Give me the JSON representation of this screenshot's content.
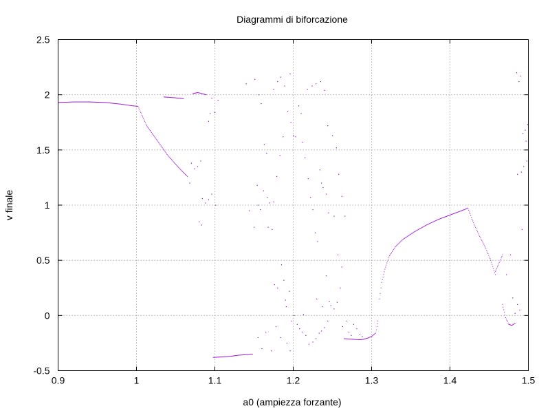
{
  "chart_data": {
    "type": "scatter",
    "title": "Diagrammi di biforcazione",
    "xlabel": "a0 (ampiezza forzante)",
    "ylabel": "v finale",
    "xlim": [
      0.9,
      1.5
    ],
    "ylim": [
      -0.5,
      2.5
    ],
    "x_ticks": [
      "0.9",
      "1",
      "1.1",
      "1.2",
      "1.3",
      "1.4",
      "1.5"
    ],
    "y_ticks": [
      "-0.5",
      "0",
      "0.5",
      "1",
      "1.5",
      "2",
      "2.5"
    ],
    "x_tick_values": [
      0.9,
      1.0,
      1.1,
      1.2,
      1.3,
      1.4,
      1.5
    ],
    "y_tick_values": [
      -0.5,
      0,
      0.5,
      1.0,
      1.5,
      2.0,
      2.5
    ],
    "grid": true,
    "series": [
      {
        "color": "#9400d3",
        "segments": [
          [
            [
              0.9,
              1.93
            ],
            [
              0.92,
              1.935
            ],
            [
              0.94,
              1.935
            ],
            [
              0.96,
              1.93
            ],
            [
              0.98,
              1.915
            ],
            [
              0.995,
              1.9
            ],
            [
              1.002,
              1.895
            ]
          ],
          [
            [
              1.003,
              1.88
            ],
            [
              1.008,
              1.8
            ],
            [
              1.013,
              1.72
            ],
            [
              1.02,
              1.65
            ],
            [
              1.027,
              1.58
            ],
            [
              1.033,
              1.52
            ],
            [
              1.04,
              1.45
            ],
            [
              1.05,
              1.37
            ],
            [
              1.058,
              1.31
            ],
            [
              1.065,
              1.26
            ]
          ],
          [
            [
              1.035,
              1.98
            ],
            [
              1.045,
              1.975
            ],
            [
              1.053,
              1.97
            ],
            [
              1.06,
              1.965
            ]
          ],
          [
            [
              1.072,
              2.01
            ],
            [
              1.078,
              2.02
            ],
            [
              1.084,
              2.01
            ],
            [
              1.089,
              2.0
            ]
          ],
          [
            [
              1.098,
              -0.38
            ],
            [
              1.11,
              -0.375
            ],
            [
              1.12,
              -0.37
            ],
            [
              1.13,
              -0.36
            ],
            [
              1.14,
              -0.355
            ],
            [
              1.148,
              -0.35
            ]
          ],
          [
            [
              1.265,
              -0.21
            ],
            [
              1.275,
              -0.215
            ],
            [
              1.285,
              -0.22
            ],
            [
              1.29,
              -0.215
            ],
            [
              1.295,
              -0.205
            ],
            [
              1.3,
              -0.19
            ],
            [
              1.305,
              -0.16
            ],
            [
              1.307,
              -0.1
            ],
            [
              1.308,
              -0.05
            ]
          ],
          [
            [
              1.31,
              0.15
            ],
            [
              1.313,
              0.3
            ],
            [
              1.317,
              0.42
            ],
            [
              1.322,
              0.53
            ],
            [
              1.33,
              0.62
            ],
            [
              1.34,
              0.69
            ],
            [
              1.355,
              0.76
            ],
            [
              1.37,
              0.82
            ],
            [
              1.385,
              0.87
            ],
            [
              1.4,
              0.91
            ],
            [
              1.415,
              0.95
            ],
            [
              1.422,
              0.97
            ]
          ],
          [
            [
              1.423,
              0.97
            ],
            [
              1.43,
              0.84
            ],
            [
              1.437,
              0.73
            ],
            [
              1.445,
              0.62
            ],
            [
              1.452,
              0.5
            ],
            [
              1.458,
              0.37
            ]
          ],
          [
            [
              1.458,
              0.4
            ],
            [
              1.463,
              0.48
            ],
            [
              1.467,
              0.55
            ]
          ],
          [
            [
              1.467,
              0.1
            ],
            [
              1.471,
              -0.02
            ],
            [
              1.475,
              -0.08
            ],
            [
              1.479,
              -0.09
            ],
            [
              1.483,
              -0.07
            ]
          ]
        ],
        "scatter": [
          [
            1.07,
            1.38
          ],
          [
            1.074,
            1.33
          ],
          [
            1.068,
            1.2
          ],
          [
            1.078,
            1.35
          ],
          [
            1.082,
            1.4
          ],
          [
            1.084,
            1.06
          ],
          [
            1.088,
            1.02
          ],
          [
            1.092,
            1.05
          ],
          [
            1.08,
            0.85
          ],
          [
            1.083,
            0.82
          ],
          [
            1.094,
            1.83
          ],
          [
            1.096,
            1.97
          ],
          [
            1.1,
            1.84
          ],
          [
            1.092,
            1.76
          ],
          [
            1.096,
            1.1
          ],
          [
            1.101,
            1.0
          ],
          [
            1.104,
            1.95
          ],
          [
            1.14,
            2.1
          ],
          [
            1.151,
            2.14
          ],
          [
            1.156,
            2.0
          ],
          [
            1.159,
            1.92
          ],
          [
            1.163,
            1.55
          ],
          [
            1.166,
            1.47
          ],
          [
            1.154,
            1.18
          ],
          [
            1.162,
            1.13
          ],
          [
            1.167,
            1.07
          ],
          [
            1.144,
            0.95
          ],
          [
            1.15,
            0.8
          ],
          [
            1.155,
            1.0
          ],
          [
            1.158,
            0.96
          ],
          [
            1.17,
            1.02
          ],
          [
            1.175,
            1.03
          ],
          [
            1.179,
            1.26
          ],
          [
            1.183,
            1.45
          ],
          [
            1.187,
            1.62
          ],
          [
            1.175,
            2.05
          ],
          [
            1.18,
            2.12
          ],
          [
            1.184,
            2.16
          ],
          [
            1.189,
            2.08
          ],
          [
            1.193,
            1.85
          ],
          [
            1.196,
            2.19
          ],
          [
            1.197,
            1.75
          ],
          [
            1.2,
            1.63
          ],
          [
            1.203,
            1.62
          ],
          [
            1.207,
            1.9
          ],
          [
            1.21,
            1.83
          ],
          [
            1.212,
            1.57
          ],
          [
            1.215,
            1.43
          ],
          [
            1.219,
            1.24
          ],
          [
            1.222,
            1.07
          ],
          [
            1.225,
            0.96
          ],
          [
            1.228,
            0.75
          ],
          [
            1.231,
            0.67
          ],
          [
            1.234,
            1.32
          ],
          [
            1.236,
            1.2
          ],
          [
            1.238,
            1.16
          ],
          [
            1.242,
            1.1
          ],
          [
            1.245,
            0.93
          ],
          [
            1.252,
            0.9
          ],
          [
            1.257,
            0.55
          ],
          [
            1.218,
            2.05
          ],
          [
            1.224,
            2.08
          ],
          [
            1.229,
            2.1
          ],
          [
            1.235,
            2.12
          ],
          [
            1.24,
            2.04
          ],
          [
            1.244,
            1.72
          ],
          [
            1.25,
            1.63
          ],
          [
            1.255,
            1.52
          ],
          [
            1.258,
            1.28
          ],
          [
            1.262,
            1.08
          ],
          [
            1.266,
            0.9
          ],
          [
            1.168,
            0.8
          ],
          [
            1.173,
            0.78
          ],
          [
            1.176,
            0.28
          ],
          [
            1.18,
            0.25
          ],
          [
            1.185,
            0.46
          ],
          [
            1.188,
            0.32
          ],
          [
            1.191,
            0.08
          ],
          [
            1.19,
            0.14
          ],
          [
            1.195,
            0.22
          ],
          [
            1.198,
            -0.05
          ],
          [
            1.201,
            0.0
          ],
          [
            1.205,
            -0.08
          ],
          [
            1.208,
            -0.12
          ],
          [
            1.212,
            -0.15
          ],
          [
            1.216,
            -0.18
          ],
          [
            1.22,
            -0.26
          ],
          [
            1.225,
            -0.24
          ],
          [
            1.229,
            -0.21
          ],
          [
            1.233,
            -0.16
          ],
          [
            1.236,
            -0.14
          ],
          [
            1.24,
            -0.11
          ],
          [
            1.244,
            -0.05
          ],
          [
            1.248,
            0.09
          ],
          [
            1.252,
            0.06
          ],
          [
            1.256,
            0.12
          ],
          [
            1.26,
            0.25
          ],
          [
            1.263,
            -0.1
          ],
          [
            1.268,
            -0.05
          ],
          [
            1.271,
            -0.15
          ],
          [
            1.274,
            -0.18
          ],
          [
            1.277,
            -0.08
          ],
          [
            1.281,
            -0.12
          ],
          [
            1.285,
            -0.17
          ],
          [
            1.288,
            -0.19
          ],
          [
            1.23,
            0.15
          ],
          [
            1.237,
            0.08
          ],
          [
            1.242,
            0.36
          ],
          [
            1.246,
            0.13
          ],
          [
            1.155,
            -0.2
          ],
          [
            1.16,
            -0.3
          ],
          [
            1.165,
            -0.15
          ],
          [
            1.172,
            -0.32
          ],
          [
            1.178,
            -0.1
          ],
          [
            1.184,
            -0.2
          ],
          [
            1.192,
            -0.25
          ],
          [
            1.196,
            -0.32
          ],
          [
            1.213,
            0.01
          ],
          [
            1.262,
            0.44
          ],
          [
            1.472,
            0.37
          ],
          [
            1.477,
            0.55
          ],
          [
            1.48,
            0.16
          ],
          [
            1.483,
            0.02
          ],
          [
            1.486,
            0.1
          ],
          [
            1.489,
            0.05
          ],
          [
            1.485,
            2.2
          ],
          [
            1.488,
            2.12
          ],
          [
            1.49,
            2.17
          ],
          [
            1.493,
            1.65
          ],
          [
            1.495,
            1.5
          ],
          [
            1.497,
            1.58
          ],
          [
            1.491,
            1.3
          ],
          [
            1.494,
            1.35
          ],
          [
            1.496,
            1.68
          ],
          [
            1.498,
            1.4
          ],
          [
            1.486,
            1.28
          ],
          [
            1.492,
            0.78
          ],
          [
            1.499,
            1.73
          ]
        ]
      }
    ]
  }
}
